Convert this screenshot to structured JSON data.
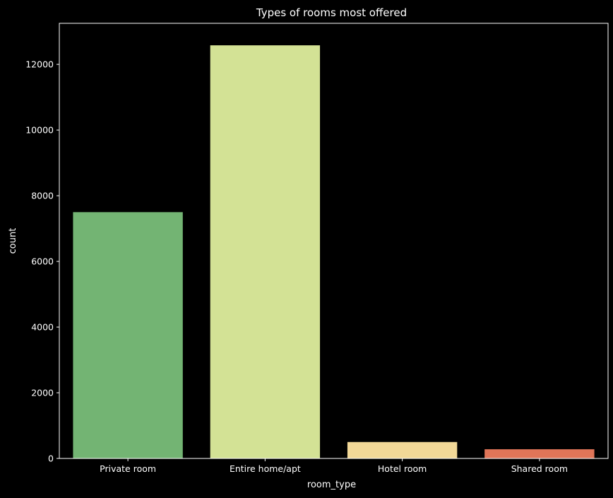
{
  "chart_data": {
    "type": "bar",
    "title": "Types of rooms most offered",
    "xlabel": "room_type",
    "ylabel": "count",
    "categories": [
      "Private room",
      "Entire home/apt",
      "Hotel room",
      "Shared room"
    ],
    "values": [
      7500,
      12580,
      500,
      280
    ],
    "colors": [
      "#73b473",
      "#d3e295",
      "#f2d897",
      "#e07558"
    ],
    "ylim": [
      0,
      13250
    ],
    "yticks": [
      0,
      2000,
      4000,
      6000,
      8000,
      10000,
      12000
    ],
    "grid": false,
    "legend": "none"
  },
  "theme": {
    "background": "#000000",
    "foreground": "#ffffff"
  }
}
